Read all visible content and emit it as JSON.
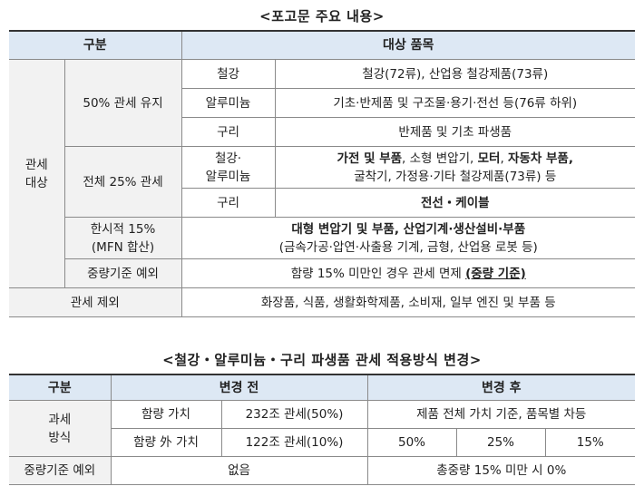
{
  "t1": {
    "title": "<포고문 주요 내용>",
    "header": {
      "c1": "구분",
      "c2": "대상 품목"
    },
    "target": {
      "label_line1": "관세",
      "label_line2": "대상"
    },
    "keep50": {
      "label": "50% 관세 유지",
      "steel": {
        "sub": "철강",
        "items": "철강(72류), 산업용 철강제품(73류)"
      },
      "alu": {
        "sub": "알루미늄",
        "items": "기초·반제품 및 구조물·용기·전선 등(76류 하위)"
      },
      "copper": {
        "sub": "구리",
        "items": "반제품 및 기초 파생품"
      }
    },
    "whole25": {
      "label": "전체 25% 관세",
      "steelalu": {
        "sub_line1": "철강·",
        "sub_line2": "알루미늄",
        "b1": "가전 및 부품",
        "t1": ", 소형 변압기, ",
        "b2": "모터",
        "t2": ", ",
        "b3": "자동차 부품,",
        "line2": "굴착기, 가정용·기타 철강제품(73류) 등"
      },
      "copper": {
        "sub": "구리",
        "items": "전선・케이블"
      }
    },
    "temp15": {
      "label_line1": "한시적 15%",
      "label_line2": "(MFN 합산)",
      "line1": "대형 변압기 및 부품, 산업기계·생산설비·부품",
      "line2": "(금속가공·압연·사출용 기계, 금형, 산업용 로봇 등)"
    },
    "weight": {
      "label": "중량기준 예외",
      "text": "함량 15% 미만인 경우 관세 면제 ",
      "bold": "(중량 기준)"
    },
    "excluded": {
      "label": "관세 제외",
      "text": "화장품, 식품, 생활화학제품, 소비재, 일부 엔진 및 부품 등"
    }
  },
  "t2": {
    "title": "<철강・알루미늄・구리 파생품 관세 적용방식 변경>",
    "header": {
      "c1": "구분",
      "before": "변경 전",
      "after": "변경 후"
    },
    "method": {
      "label_line1": "과세",
      "label_line2": "방식",
      "row1": {
        "basis": "함량 가치",
        "tax": "232조 관세(50%)",
        "after": "제품 전체 가치 기준, 품목별 차등"
      },
      "row2": {
        "basis": "함량 外 가치",
        "tax": "122조 관세(10%)",
        "a1": "50%",
        "a2": "25%",
        "a3": "15%"
      }
    },
    "weight": {
      "label": "중량기준 예외",
      "before": "없음",
      "after": "총중량 15% 미만 시 0%"
    }
  }
}
